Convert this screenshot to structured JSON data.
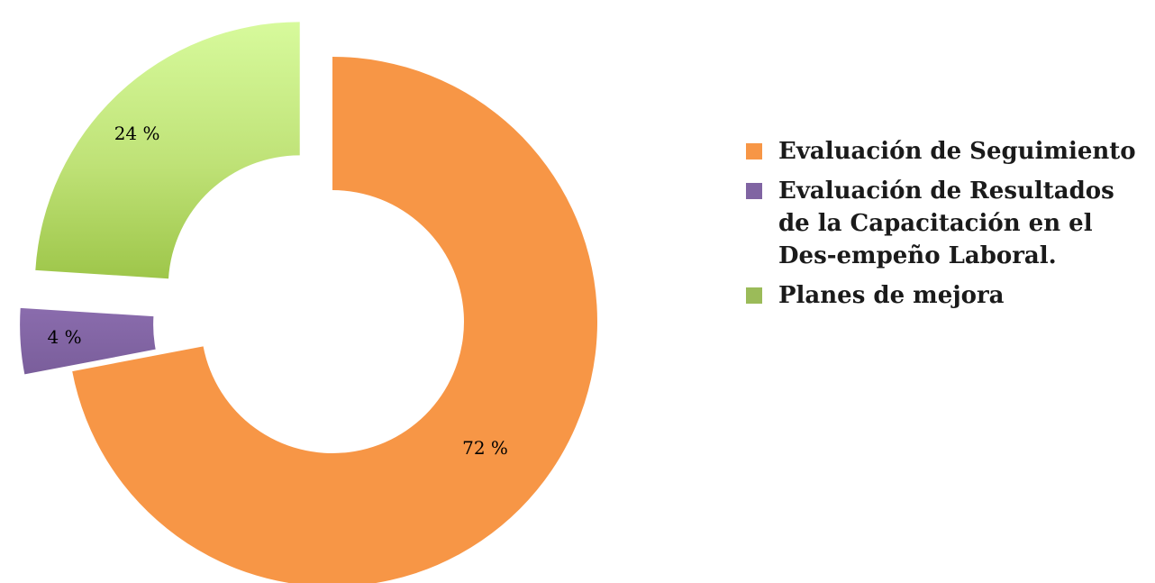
{
  "chart_data": {
    "type": "pie",
    "variant": "donut",
    "title": "",
    "slices": [
      {
        "label": "Evaluación de Seguimiento",
        "value": 72,
        "display": "72 %",
        "color": "#f79646",
        "exploded": false
      },
      {
        "label": "Evaluación de Resultados de la Capacitación en el Des-empeño Laboral.",
        "value": 4,
        "display": "4 %",
        "color": "#8064a2",
        "exploded": true
      },
      {
        "label": "Planes de mejora",
        "value": 24,
        "display": "24 %",
        "color": "#9bbb59",
        "exploded": true
      }
    ],
    "legend": {
      "position": "right",
      "items": [
        {
          "label": "Evaluación de Seguimiento",
          "color": "#f79646"
        },
        {
          "label": "Evaluación de Resultados de la Capacitación en el Des-empeño Laboral.",
          "color": "#8064a2"
        },
        {
          "label": "Planes de mejora",
          "color": "#9bbb59"
        }
      ]
    }
  }
}
